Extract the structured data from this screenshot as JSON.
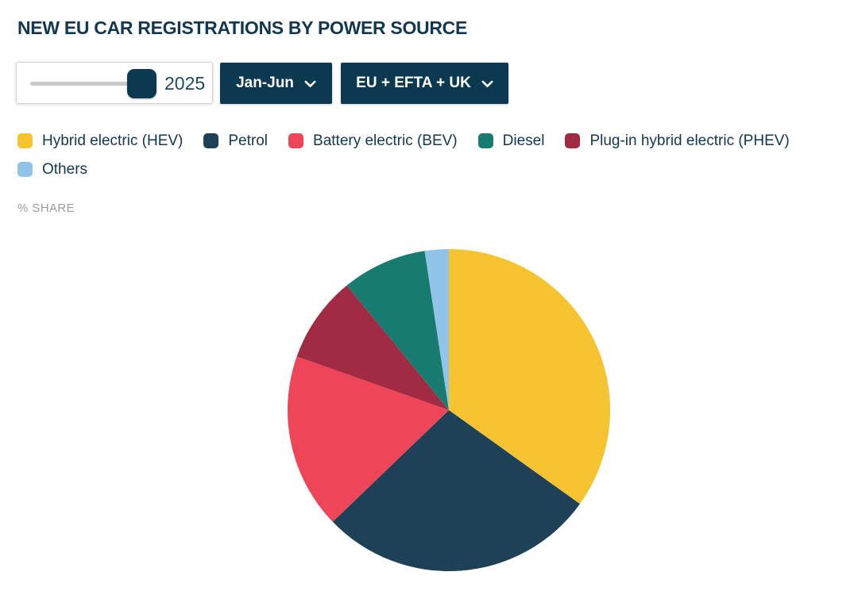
{
  "controls": {
    "year_slider": {
      "value": "2025"
    },
    "period_dropdown": {
      "value": "Jan-Jun"
    },
    "region_dropdown": {
      "value": "EU + EFTA + UK"
    }
  },
  "chart_data": {
    "type": "pie",
    "title": "NEW EU CAR REGISTRATIONS BY POWER SOURCE",
    "unit_label": "% SHARE",
    "legend_position": "top",
    "start_angle_deg": 0,
    "direction": "clockwise",
    "slices": [
      {
        "id": "hev",
        "label": "Hybrid electric (HEV)",
        "value": 34.9,
        "color": "#f6c431"
      },
      {
        "id": "petrol",
        "label": "Petrol",
        "value": 27.9,
        "color": "#1e4158"
      },
      {
        "id": "bev",
        "label": "Battery electric (BEV)",
        "value": 17.6,
        "color": "#ef4558"
      },
      {
        "id": "phev",
        "label": "Plug-in hybrid electric (PHEV)",
        "value": 8.7,
        "color": "#a02b42"
      },
      {
        "id": "diesel",
        "label": "Diesel",
        "value": 8.5,
        "color": "#177b70"
      },
      {
        "id": "others",
        "label": "Others",
        "value": 2.4,
        "color": "#90c4e9"
      }
    ],
    "legend_order": [
      0,
      1,
      2,
      4,
      3,
      5
    ]
  },
  "colors": {
    "accent_navy": "#0c3950",
    "title_text": "#123851",
    "slider_track": "#c9c9c9",
    "muted_label": "#9c9c9c"
  }
}
